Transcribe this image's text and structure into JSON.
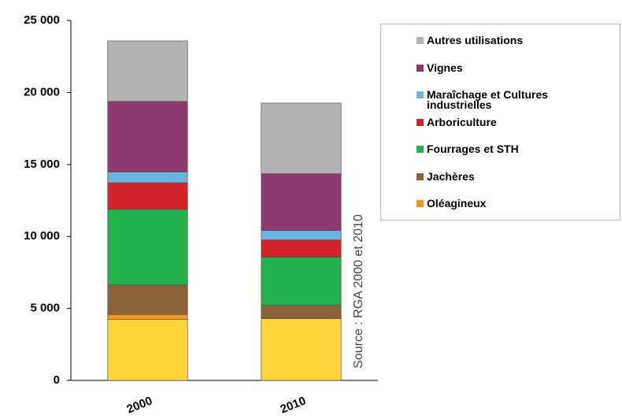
{
  "chart_data": {
    "type": "stacked_bar",
    "categories": [
      "2000",
      "2010"
    ],
    "series": [
      {
        "color": "#ffd43b",
        "values": [
          4250,
          4300
        ]
      },
      {
        "name": "Oléagineux",
        "color": "#f7941d",
        "values": [
          330,
          60
        ]
      },
      {
        "name": "Jachères",
        "color": "#8c6239",
        "values": [
          2050,
          850
        ]
      },
      {
        "name": "Fourrages et STH",
        "color": "#22b14c",
        "values": [
          5250,
          3350
        ]
      },
      {
        "name": "Arboriculture",
        "color": "#d2232a",
        "values": [
          1850,
          1200
        ]
      },
      {
        "name": "Maraîchage et Cultures industrielles",
        "color": "#6cb4e4",
        "values": [
          750,
          650
        ]
      },
      {
        "name": "Vignes",
        "color": "#8e3a6e",
        "values": [
          4900,
          3950
        ]
      },
      {
        "name": "Autres utilisations",
        "color": "#b3b3b3",
        "values": [
          4200,
          4900
        ]
      }
    ],
    "ylim": [
      0,
      25000
    ],
    "yticks": [
      0,
      {
        "value": 5000,
        "label": "5 000"
      },
      {
        "value": 10000,
        "label": "10 000"
      },
      {
        "value": 15000,
        "label": "15 000"
      },
      {
        "value": 20000,
        "label": "20 000"
      },
      {
        "value": 25000,
        "label": "25 000"
      }
    ],
    "annotation": "Source : RGA 2000 et 2010",
    "legend": "right"
  }
}
